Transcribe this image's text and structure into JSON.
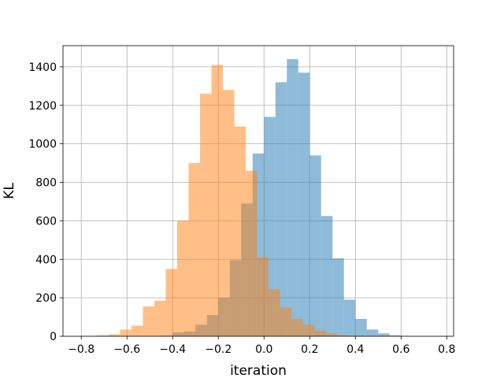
{
  "chart_data": {
    "type": "bar",
    "title": "",
    "xlabel": "iteration",
    "ylabel": "KL",
    "xlim": [
      -0.88,
      0.83
    ],
    "ylim": [
      0,
      1510
    ],
    "xticks": [
      -0.8,
      -0.6,
      -0.4,
      -0.2,
      0.0,
      0.2,
      0.4,
      0.6,
      0.8
    ],
    "xtick_labels": [
      "−0.8",
      "−0.6",
      "−0.4",
      "−0.2",
      "0.0",
      "0.2",
      "0.4",
      "0.6",
      "0.8"
    ],
    "yticks": [
      0,
      200,
      400,
      600,
      800,
      1000,
      1200,
      1400
    ],
    "ytick_labels": [
      "0",
      "200",
      "400",
      "600",
      "800",
      "1000",
      "1200",
      "1400"
    ],
    "grid": true,
    "bin_width": 0.05,
    "series": [
      {
        "color": "#1f77b4",
        "opacity": 0.5,
        "bin_starts": [
          -0.45,
          -0.4,
          -0.35,
          -0.3,
          -0.25,
          -0.2,
          -0.15,
          -0.1,
          -0.05,
          0.0,
          0.05,
          0.1,
          0.15,
          0.2,
          0.25,
          0.3,
          0.35,
          0.4,
          0.45,
          0.5,
          0.55
        ],
        "values": [
          3,
          20,
          25,
          60,
          110,
          200,
          395,
          690,
          950,
          1140,
          1320,
          1440,
          1370,
          940,
          625,
          405,
          190,
          90,
          35,
          15,
          5
        ]
      },
      {
        "color": "#ff7f0e",
        "opacity": 0.5,
        "bin_starts": [
          -0.78,
          -0.73,
          -0.68,
          -0.63,
          -0.58,
          -0.53,
          -0.48,
          -0.43,
          -0.38,
          -0.33,
          -0.28,
          -0.23,
          -0.18,
          -0.13,
          -0.08,
          -0.03,
          0.02,
          0.07,
          0.12,
          0.17,
          0.22,
          0.27,
          0.32
        ],
        "values": [
          1,
          5,
          10,
          35,
          55,
          155,
          185,
          350,
          600,
          900,
          1260,
          1410,
          1280,
          1090,
          860,
          410,
          245,
          150,
          90,
          60,
          30,
          15,
          5
        ]
      }
    ]
  }
}
